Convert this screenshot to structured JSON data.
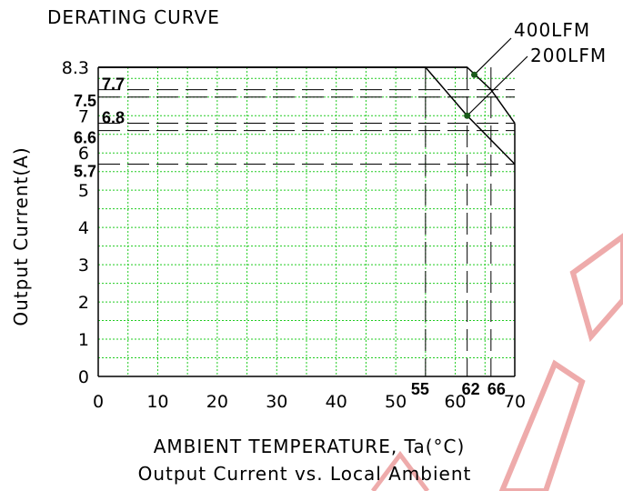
{
  "chart_data": {
    "type": "line",
    "title": "DERATING CURVE",
    "xlabel": "AMBIENT TEMPERATURE, Ta(°C)",
    "ylabel": "Output Current(A)",
    "subtitle": "Output Current vs. Local Ambient",
    "xlim": [
      0,
      70
    ],
    "ylim": [
      0,
      8.3
    ],
    "x_ticks": [
      "0",
      "10",
      "20",
      "30",
      "40",
      "50",
      "60",
      "70"
    ],
    "y_ticks": [
      "0",
      "1",
      "2",
      "3",
      "4",
      "5",
      "6",
      "7",
      "8.3"
    ],
    "grid": true,
    "series": [
      {
        "name": "400LFM",
        "x": [
          0,
          62,
          66,
          70
        ],
        "y": [
          8.3,
          8.3,
          7.7,
          6.8
        ]
      },
      {
        "name": "200LFM",
        "x": [
          0,
          55,
          62,
          70
        ],
        "y": [
          8.3,
          8.3,
          7.0,
          5.7
        ]
      }
    ],
    "reference_x": [
      "55",
      "62",
      "66"
    ],
    "reference_y": [
      "7.7",
      "7.5",
      "6.8",
      "6.6",
      "5.7"
    ]
  },
  "watermark": {
    "color": "#e06666"
  },
  "colors": {
    "grid": "#22cc22",
    "ink": "#000000"
  }
}
